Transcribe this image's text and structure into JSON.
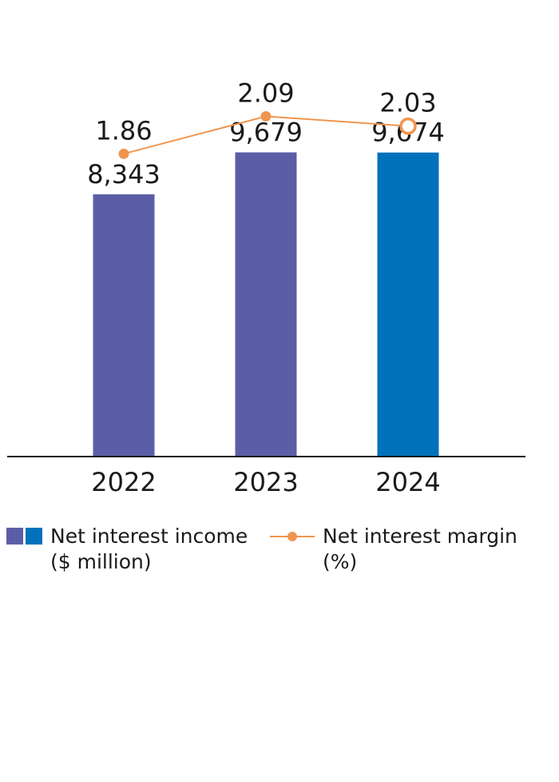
{
  "chart_data": {
    "type": "bar",
    "categories": [
      "2022",
      "2023",
      "2024"
    ],
    "series": [
      {
        "name": "Net interest income ($ million)",
        "type": "bar",
        "values": [
          8343,
          9679,
          9674
        ],
        "labels": [
          "8,343",
          "9,679",
          "9,674"
        ],
        "colors": [
          "#5b5ea6",
          "#5b5ea6",
          "#0072bc"
        ]
      },
      {
        "name": "Net interest margin (%)",
        "type": "line",
        "values": [
          1.86,
          2.09,
          2.03
        ],
        "labels": [
          "1.86",
          "2.09",
          "2.03"
        ],
        "color": "#f0954f",
        "last_marker": "hollow"
      }
    ],
    "bar_ylim": [
      0,
      13000
    ],
    "line_ylim": [
      0,
      2.51
    ],
    "grid": false,
    "legend_position": "bottom"
  },
  "legend": {
    "bars_line1": "Net interest income",
    "bars_line2": "($ million)",
    "line_line1": "Net interest margin",
    "line_line2": "(%)"
  },
  "colors": {
    "prior_years": "#5b5ea6",
    "current_year": "#0072bc",
    "margin_line": "#f0954f",
    "axis": "#1a1a1a"
  }
}
